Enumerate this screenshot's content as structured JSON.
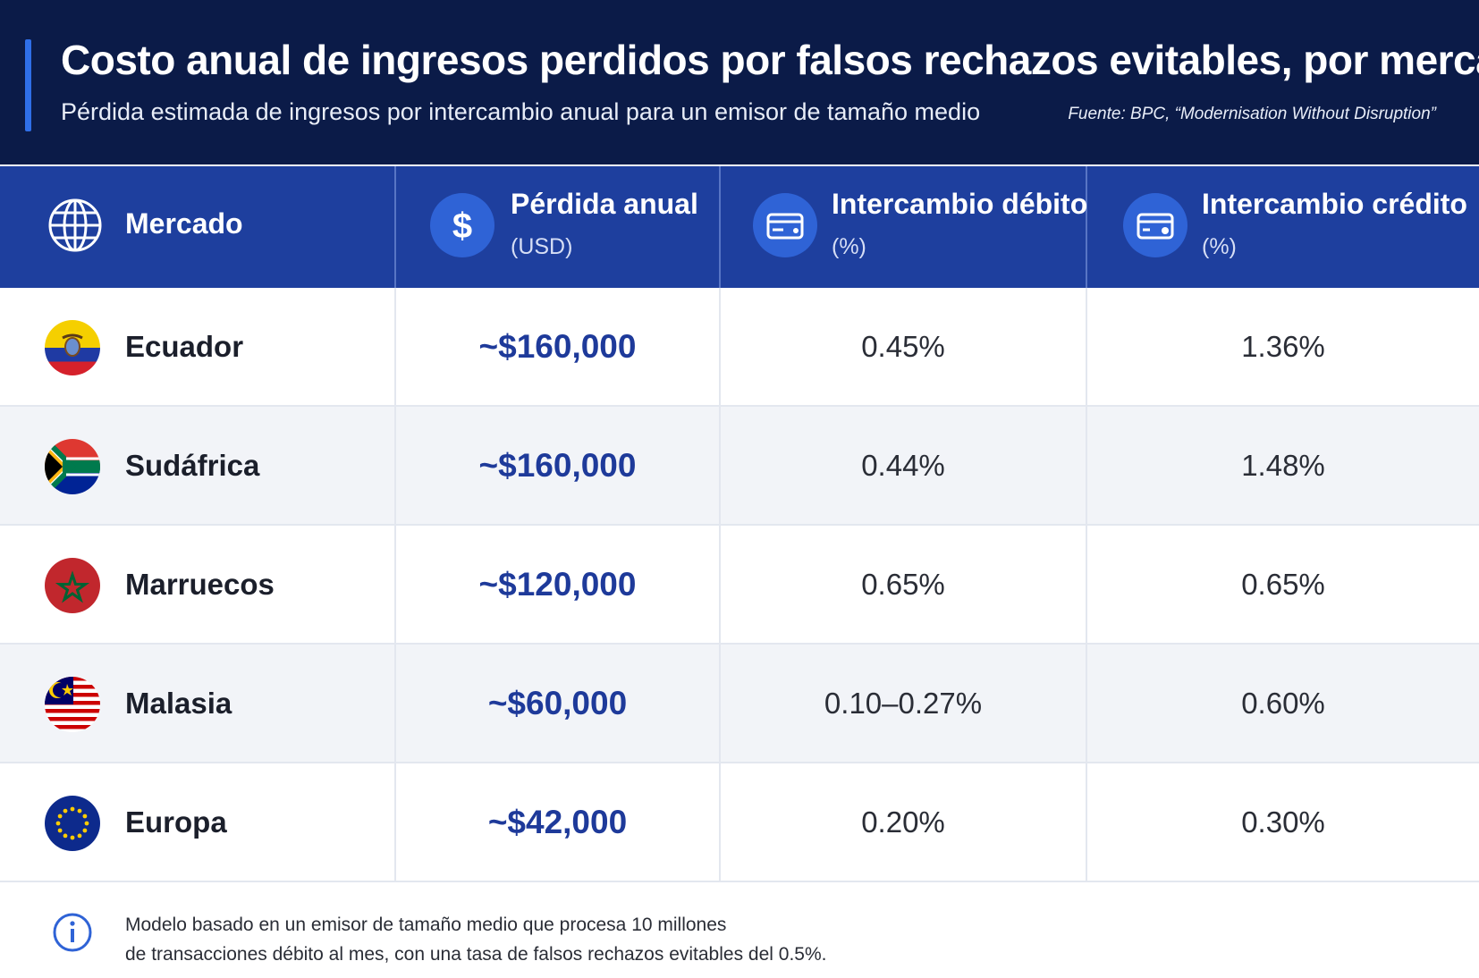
{
  "header": {
    "title": "Costo anual de ingresos perdidos por falsos rechazos evitables, por mercado",
    "subtitle": "Pérdida estimada de ingresos por intercambio anual para un emisor de tamaño medio",
    "source": "Fuente: BPC, “Modernisation Without Disruption”"
  },
  "columns": [
    {
      "label": "Mercado",
      "sub": "",
      "icon": "globe-icon"
    },
    {
      "label": "Pérdida anual",
      "sub": "(USD)",
      "icon": "dollar-icon"
    },
    {
      "label": "Intercambio débito",
      "sub": "(%)",
      "icon": "debit-card-icon"
    },
    {
      "label": "Intercambio crédito",
      "sub": "(%)",
      "icon": "credit-card-icon"
    }
  ],
  "chart_data": {
    "type": "table",
    "title": "Costo anual de ingresos perdidos por falsos rechazos evitables, por mercado",
    "columns": [
      "Mercado",
      "Pérdida anual (USD)",
      "Intercambio débito (%)",
      "Intercambio crédito (%)"
    ],
    "rows": [
      {
        "market": "Ecuador",
        "flag": "ecuador-flag-icon",
        "loss": "~$160,000",
        "debit": "0.45%",
        "credit": "1.36%"
      },
      {
        "market": "Sudáfrica",
        "flag": "south-africa-flag-icon",
        "loss": "~$160,000",
        "debit": "0.44%",
        "credit": "1.48%"
      },
      {
        "market": "Marruecos",
        "flag": "morocco-flag-icon",
        "loss": "~$120,000",
        "debit": "0.65%",
        "credit": "0.65%"
      },
      {
        "market": "Malasia",
        "flag": "malaysia-flag-icon",
        "loss": "~$60,000",
        "debit": "0.10–0.27%",
        "credit": "0.60%"
      },
      {
        "market": "Europa",
        "flag": "eu-flag-icon",
        "loss": "~$42,000",
        "debit": "0.20%",
        "credit": "0.30%"
      }
    ]
  },
  "footnote": {
    "line1": "Modelo basado en un emisor de tamaño medio que procesa 10 millones",
    "line2": "de transacciones débito al mes, con una tasa de falsos rechazos evitables del 0.5%.",
    "icon": "info-icon"
  },
  "colors": {
    "header_bg": "#0b1b48",
    "table_head_bg": "#1e3f9e",
    "accent": "#2f6fe8",
    "loss_text": "#1e3a9a"
  }
}
